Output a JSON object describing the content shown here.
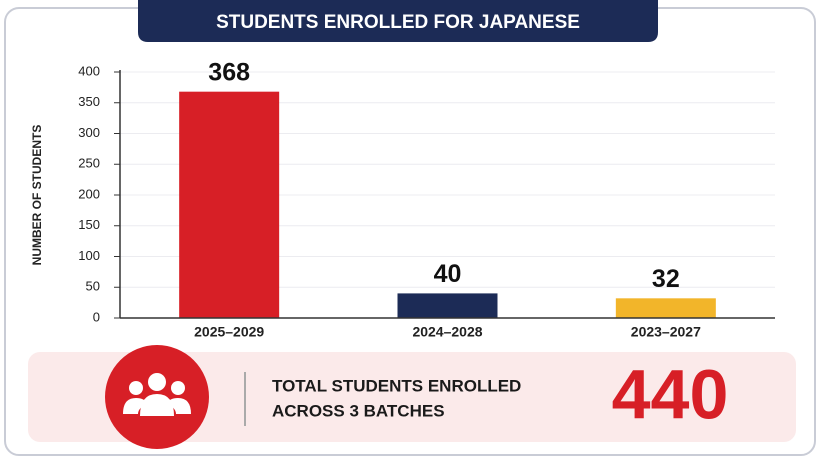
{
  "chart_data": {
    "type": "bar",
    "title": "STUDENTS ENROLLED FOR JAPANESE",
    "y_label": "NUMBER OF STUDENTS",
    "categories": [
      "2025–2029",
      "2024–2028",
      "2023–2027"
    ],
    "values": [
      368,
      40,
      32
    ],
    "colors": [
      "#d71f26",
      "#1c2b56",
      "#f2b52a"
    ],
    "ylim": [
      0,
      400
    ],
    "yticks": [
      0,
      50,
      100,
      150,
      200,
      250,
      300,
      350,
      400
    ],
    "grid": true
  },
  "summary": {
    "label_lines": [
      "TOTAL STUDENTS ENROLLED",
      "ACROSS 3 BATCHES"
    ],
    "total": 440
  }
}
